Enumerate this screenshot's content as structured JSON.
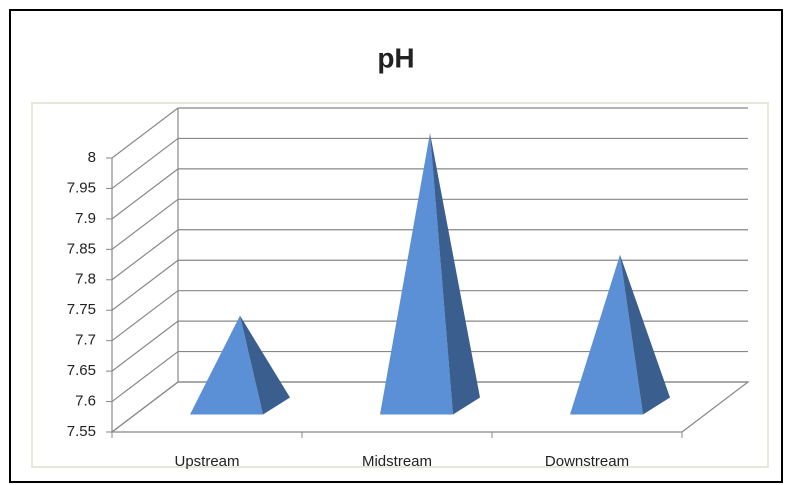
{
  "chart_data": {
    "type": "pyramid3d",
    "title": "pH",
    "categories": [
      "Upstream",
      "Midstream",
      "Downstream"
    ],
    "values": [
      7.7,
      8.0,
      7.8
    ],
    "color": "#5b8fd6",
    "side_color": "#3a5f8f",
    "ylim": [
      7.55,
      8
    ],
    "yticks": [
      7.55,
      7.6,
      7.65,
      7.7,
      7.75,
      7.8,
      7.85,
      7.9,
      7.95,
      8
    ],
    "grid": true
  }
}
